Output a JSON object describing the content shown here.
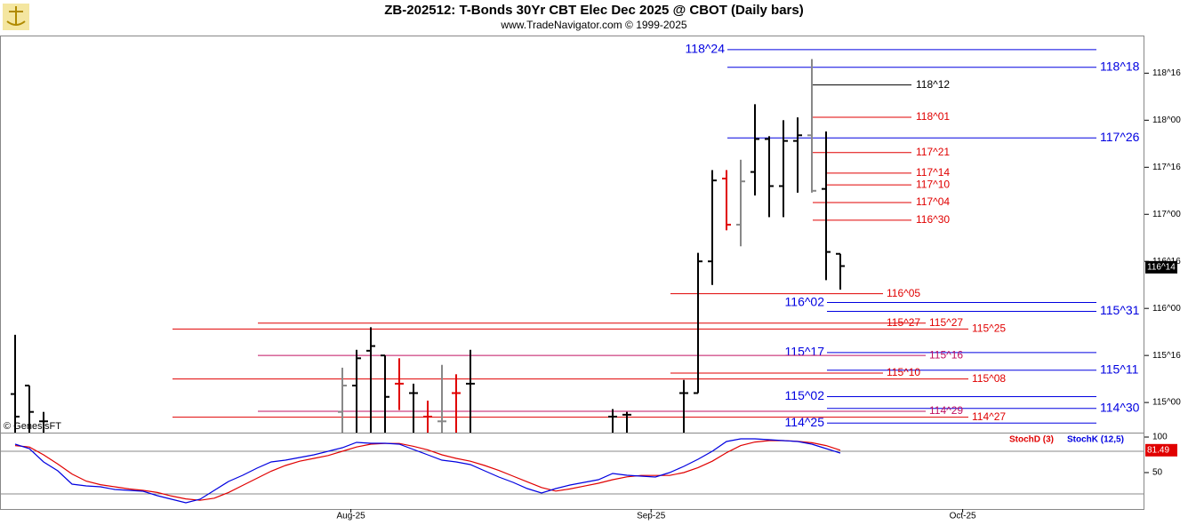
{
  "chart_data": [
    {
      "type": "ohlc",
      "title": "ZB-202512:  T-Bonds 30Yr CBT Elec Dec 2025 @ CBOT  (Daily bars)",
      "subtitle": "www.TradeNavigator.com © 1999-2025",
      "watermark": "© GenesisFT",
      "x": [
        0,
        1,
        2,
        23,
        24,
        25,
        26,
        27,
        28,
        29,
        30,
        31,
        32,
        42,
        43,
        47,
        48,
        49,
        50,
        51,
        52,
        53,
        54,
        55,
        56,
        57,
        58
      ],
      "open": [
        115.09,
        115.18,
        114.8,
        114.9,
        115.18,
        115.55,
        115.5,
        115.2,
        115.1,
        114.85,
        114.8,
        115.1,
        115.2,
        114.85,
        114.87,
        115.1,
        115.1,
        116.5,
        117.38,
        116.89,
        117.45,
        117.8,
        117.3,
        117.78,
        117.84,
        117.27,
        116.58
      ],
      "high": [
        115.72,
        115.18,
        114.9,
        115.37,
        115.56,
        115.8,
        115.5,
        115.47,
        115.2,
        115.02,
        115.4,
        115.3,
        115.56,
        114.93,
        114.9,
        115.24,
        116.59,
        117.47,
        117.47,
        117.58,
        118.17,
        117.83,
        118.0,
        118.03,
        118.65,
        117.88,
        116.58
      ],
      "low": [
        114.5,
        114.5,
        114.5,
        114.5,
        114.5,
        114.5,
        114.5,
        114.92,
        114.5,
        114.5,
        114.5,
        114.5,
        114.5,
        114.5,
        114.5,
        114.5,
        115.1,
        116.25,
        116.83,
        116.66,
        117.2,
        116.97,
        116.97,
        117.23,
        117.23,
        116.3,
        116.2
      ],
      "close": [
        114.85,
        114.9,
        114.8,
        115.18,
        115.47,
        115.6,
        115.06,
        115.2,
        115.1,
        114.85,
        114.8,
        115.1,
        115.2,
        114.85,
        114.87,
        115.1,
        116.5,
        117.36,
        116.89,
        117.35,
        117.8,
        117.3,
        117.78,
        117.84,
        117.25,
        116.6,
        116.45
      ],
      "bar_colors": [
        "#000000",
        "#000000",
        "#000000",
        "#888888",
        "#000000",
        "#000000",
        "#000000",
        "#e00000",
        "#000000",
        "#e00000",
        "#888888",
        "#e00000",
        "#000000",
        "#000000",
        "#000000",
        "#000000",
        "#000000",
        "#000000",
        "#e00000",
        "#888888",
        "#000000",
        "#000000",
        "#000000",
        "#000000",
        "#888888",
        "#000000",
        "#000000"
      ],
      "xlim": [
        -1.0625,
        79.25
      ],
      "ylim": [
        114.68,
        118.9
      ],
      "yticks": [
        {
          "value": 115,
          "label": "115^00"
        },
        {
          "value": 115.5,
          "label": "115^16"
        },
        {
          "value": 116,
          "label": "116^00"
        },
        {
          "value": 116.5,
          "label": "116^16"
        },
        {
          "value": 117,
          "label": "117^00"
        },
        {
          "value": 117.5,
          "label": "117^16"
        },
        {
          "value": 118,
          "label": "118^00"
        },
        {
          "value": 118.5,
          "label": "118^16"
        }
      ],
      "xticks": [
        {
          "value": 23.6,
          "label": "Aug-25"
        },
        {
          "value": 44.7,
          "label": "Sep-25"
        },
        {
          "value": 66.6,
          "label": "Oct-25"
        }
      ],
      "levels": [
        {
          "label": "118^24",
          "value": 118.75,
          "color": "#0000e0"
        },
        {
          "label": "118^18",
          "value": 118.5625,
          "color": "#0000e0"
        },
        {
          "label": "118^12",
          "value": 118.375,
          "color": "#000000"
        },
        {
          "label": "118^01",
          "value": 118.03125,
          "color": "#e00000"
        },
        {
          "label": "117^26",
          "value": 117.8125,
          "color": "#0000e0"
        },
        {
          "label": "117^21",
          "value": 117.65625,
          "color": "#e00000"
        },
        {
          "label": "117^14",
          "value": 117.4375,
          "color": "#e00000"
        },
        {
          "label": "117^10",
          "value": 117.3125,
          "color": "#e00000"
        },
        {
          "label": "117^04",
          "value": 117.125,
          "color": "#e00000"
        },
        {
          "label": "116^30",
          "value": 116.9375,
          "color": "#e00000"
        },
        {
          "label": "116^05",
          "value": 116.15625,
          "color": "#e00000"
        },
        {
          "label": "116^02",
          "value": 116.0625,
          "color": "#0000e0"
        },
        {
          "label": "115^31",
          "value": 115.96875,
          "color": "#0000e0"
        },
        {
          "label": "115^27",
          "value": 115.84375,
          "color": "#e00000"
        },
        {
          "label": "115^27",
          "value": 115.84375,
          "color": "#e00000"
        },
        {
          "label": "115^25",
          "value": 115.78125,
          "color": "#e00000"
        },
        {
          "label": "115^17",
          "value": 115.53125,
          "color": "#0000e0"
        },
        {
          "label": "115^16",
          "value": 115.5,
          "color": "#c01060"
        },
        {
          "label": "115^11",
          "value": 115.34375,
          "color": "#0000e0"
        },
        {
          "label": "115^10",
          "value": 115.3125,
          "color": "#e00000"
        },
        {
          "label": "115^08",
          "value": 115.25,
          "color": "#e00000"
        },
        {
          "label": "115^02",
          "value": 115.0625,
          "color": "#0000e0"
        },
        {
          "label": "114^30",
          "value": 114.9375,
          "color": "#0000e0"
        },
        {
          "label": "114^29",
          "value": 114.90625,
          "color": "#c01060"
        },
        {
          "label": "114^27",
          "value": 114.84375,
          "color": "#e00000"
        },
        {
          "label": "114^25",
          "value": 114.78125,
          "color": "#0000e0"
        }
      ],
      "last_price": {
        "value": 116.4375,
        "label": "116^14"
      }
    },
    {
      "type": "line",
      "xlim": [
        -1.0625,
        79.25
      ],
      "ylim": [
        -1.25,
        105
      ],
      "yticks": [
        50,
        100
      ],
      "reference_lines": [
        20,
        80
      ],
      "series": [
        {
          "name": "StochD (3)",
          "color": "#e00000",
          "values": [
            88,
            86,
            75,
            62,
            48,
            38,
            33,
            30,
            27,
            25,
            22,
            17,
            13,
            11,
            14,
            22,
            32,
            42,
            52,
            60,
            66,
            70,
            74,
            80,
            86,
            90,
            91,
            91,
            87,
            82,
            75,
            70,
            66,
            60,
            53,
            45,
            37,
            29,
            24,
            27,
            31,
            35,
            40,
            44,
            46,
            46,
            46,
            50,
            57,
            66,
            78,
            88,
            93,
            95,
            95,
            94,
            92,
            88,
            81.49
          ]
        },
        {
          "name": "StochK (12,5)",
          "color": "#0000e0",
          "values": [
            90,
            83.75,
            65,
            52.5,
            33.75,
            31.25,
            30,
            26.25,
            25,
            23.75,
            17.5,
            12.5,
            7.5,
            12.5,
            25,
            37.5,
            46.25,
            56.25,
            65,
            67.5,
            71.25,
            75,
            80,
            85,
            92.5,
            91.25,
            91.25,
            90,
            82.5,
            75,
            67.5,
            65,
            61.25,
            52.5,
            43.75,
            36.25,
            27.5,
            21.25,
            27.5,
            32.5,
            36.25,
            40,
            48.75,
            46.25,
            45,
            43.75,
            50,
            58.75,
            68.75,
            80,
            93.75,
            97.5,
            97.5,
            96.25,
            95,
            93.75,
            90,
            83.75,
            77.5
          ]
        }
      ]
    }
  ]
}
